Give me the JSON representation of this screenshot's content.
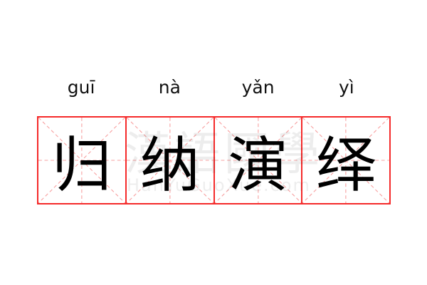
{
  "pinyin": [
    "guī",
    "nà",
    "yǎn",
    "yì"
  ],
  "characters": [
    "归",
    "纳",
    "演",
    "绎"
  ],
  "watermark": {
    "chinese": "漢語國學",
    "latin": "HanYuGuoXue.com"
  },
  "colors": {
    "grid_border": "#f52a2a",
    "guide_lines": "#f7a0a0",
    "text": "#000000"
  }
}
